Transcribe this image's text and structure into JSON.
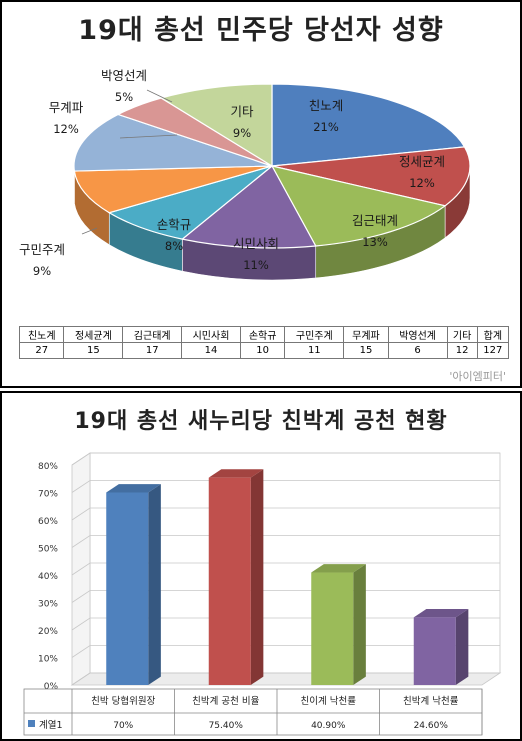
{
  "panel1": {
    "title": "19대 총선 민주당 당선자 성향",
    "watermark": "'아이엠피터'",
    "chart_data": {
      "type": "pie",
      "title": "19대 총선 민주당 당선자 성향",
      "slices": [
        {
          "label": "친노계",
          "pct": "21%",
          "value": 27,
          "color": "#4f7fbe"
        },
        {
          "label": "정세균계",
          "pct": "12%",
          "value": 15,
          "color": "#c0504d"
        },
        {
          "label": "김근태계",
          "pct": "13%",
          "value": 17,
          "color": "#9bbb59"
        },
        {
          "label": "시민사회",
          "pct": "11%",
          "value": 14,
          "color": "#8064a2"
        },
        {
          "label": "손학규",
          "pct": "8%",
          "value": 10,
          "color": "#4bacc6"
        },
        {
          "label": "구민주계",
          "pct": "9%",
          "value": 11,
          "color": "#f79646"
        },
        {
          "label": "무계파",
          "pct": "12%",
          "value": 15,
          "color": "#95b3d7"
        },
        {
          "label": "박영선계",
          "pct": "5%",
          "value": 6,
          "color": "#d99694"
        },
        {
          "label": "기타",
          "pct": "9%",
          "value": 12,
          "color": "#c3d69b"
        }
      ],
      "table": {
        "headers": [
          "친노계",
          "정세균계",
          "김근태계",
          "시민사회",
          "손학규",
          "구민주계",
          "무계파",
          "박영선계",
          "기타",
          "합계"
        ],
        "values": [
          "27",
          "15",
          "17",
          "14",
          "10",
          "11",
          "15",
          "6",
          "12",
          "127"
        ]
      }
    }
  },
  "panel2": {
    "title": "19대 총선 새누리당 친박계 공천 현황",
    "chart_data": {
      "type": "bar",
      "title": "19대 총선 새누리당 친박계 공천 현황",
      "categories": [
        "친박 당협위원장",
        "친박계 공천 비율",
        "친이계 낙천률",
        "친박계 낙천률"
      ],
      "values": [
        70,
        75.4,
        40.9,
        24.6
      ],
      "value_labels": [
        "70%",
        "75.40%",
        "40.90%",
        "24.60%"
      ],
      "colors": [
        "#4f81bd",
        "#c0504d",
        "#9bbb59",
        "#8064a2"
      ],
      "ylim": [
        0,
        80
      ],
      "yticks": [
        "0%",
        "10%",
        "20%",
        "30%",
        "40%",
        "50%",
        "60%",
        "70%",
        "80%"
      ],
      "series_name": "계열1",
      "legend_color": "#4f81bd"
    }
  }
}
